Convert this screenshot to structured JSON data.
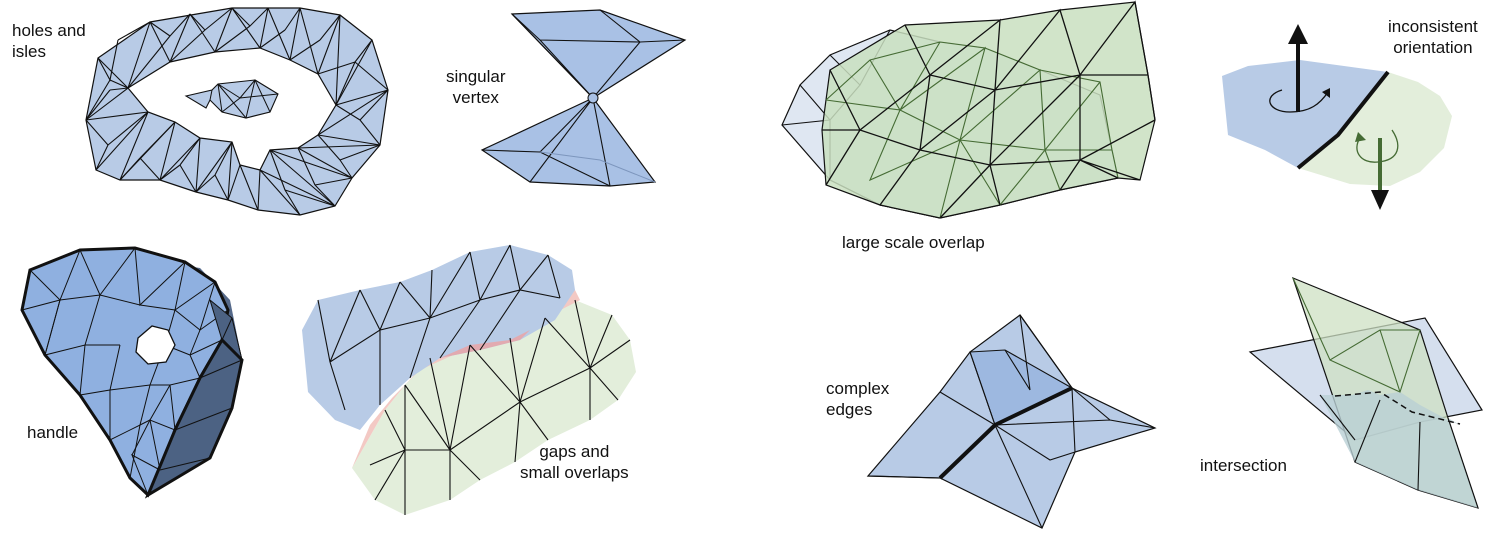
{
  "labels": {
    "holes": "holes and\nisles",
    "singular": "singular\nvertex",
    "handle": "handle",
    "gaps": "gaps and\nsmall overlaps",
    "overlap": "large scale overlap",
    "orientation": "inconsistent\norientation",
    "complex": "complex\nedges",
    "intersection": "intersection"
  },
  "colors": {
    "blue": "#b8cbe6",
    "blue_mid": "#9db8e0",
    "blue_dark": "#4f6788",
    "green": "#e3eedb",
    "green_mid": "#c9dfc0",
    "green_dark": "#456b34",
    "pink": "#f3c9c4",
    "edge": "#111111"
  }
}
